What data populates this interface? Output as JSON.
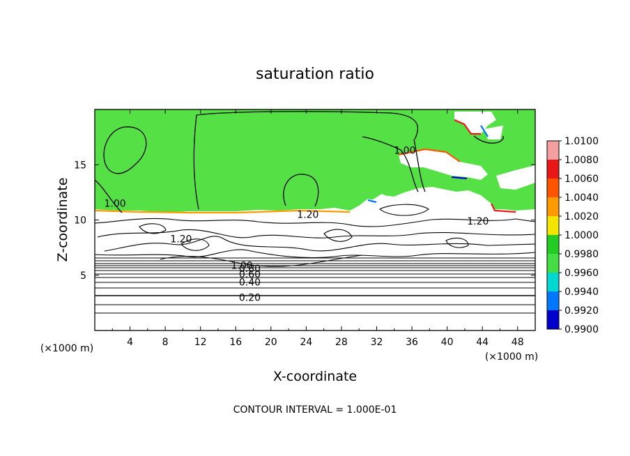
{
  "chart_data": {
    "type": "heatmap",
    "title": "saturation ratio",
    "xlabel": "X-coordinate",
    "ylabel": "Z-coordinate",
    "x_unit": "(×1000 m)",
    "y_unit": "(×1000 m)",
    "xlim": [
      0,
      50
    ],
    "ylim": [
      0,
      20
    ],
    "x_ticks": [
      4,
      8,
      12,
      16,
      20,
      24,
      28,
      32,
      36,
      40,
      44,
      48
    ],
    "y_ticks": [
      5,
      10,
      15
    ],
    "footer": "CONTOUR INTERVAL = 1.000E-01",
    "colorbar": {
      "levels": [
        "1.0100",
        "1.0080",
        "1.0060",
        "1.0040",
        "1.0020",
        "1.0000",
        "0.9980",
        "0.9960",
        "0.9940",
        "0.9920",
        "0.9900"
      ],
      "colors": [
        "#f4a0a0",
        "#e81818",
        "#ff5500",
        "#ff9a00",
        "#f2e600",
        "#22cc22",
        "#44dd44",
        "#00d8d0",
        "#0077ff",
        "#0000cc",
        "#3a0080"
      ]
    },
    "field_colors": {
      "saturated": "#55e045",
      "subsaturated": "#ffffff",
      "contour": "#000000"
    },
    "contour_labels": [
      {
        "text": "1.00",
        "x": 2.3,
        "y": 11.5
      },
      {
        "text": "1.20",
        "x": 9.8,
        "y": 8.3
      },
      {
        "text": "1.20",
        "x": 24.2,
        "y": 10.5
      },
      {
        "text": "1.00",
        "x": 35.2,
        "y": 16.3
      },
      {
        "text": "1.20",
        "x": 43.5,
        "y": 9.9
      },
      {
        "text": "1.00",
        "x": 16.7,
        "y": 5.9
      },
      {
        "text": "0.80",
        "x": 17.6,
        "y": 5.6
      },
      {
        "text": "0.60",
        "x": 17.6,
        "y": 5.1
      },
      {
        "text": "0.40",
        "x": 17.6,
        "y": 4.4
      },
      {
        "text": "0.20",
        "x": 17.6,
        "y": 3.0
      }
    ],
    "horizontal_contours": [
      0.2,
      0.3,
      0.4,
      0.5,
      0.6,
      0.7,
      0.8,
      0.9,
      0.95
    ]
  }
}
